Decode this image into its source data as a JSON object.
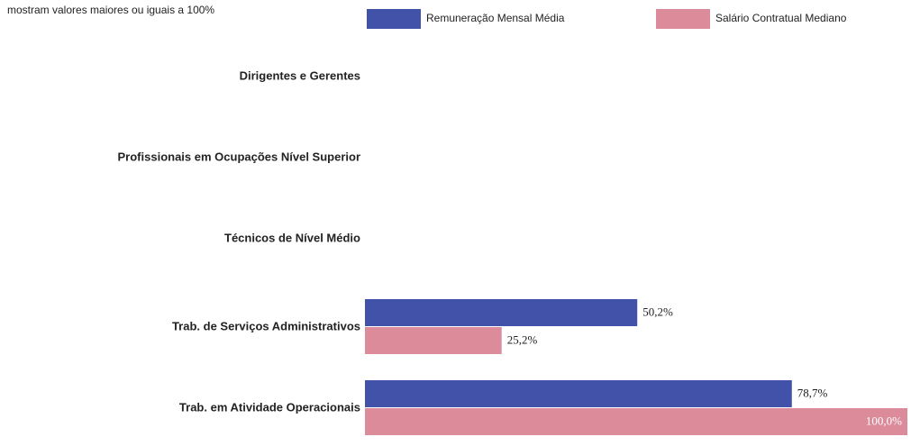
{
  "chart_data": {
    "type": "bar",
    "orientation": "horizontal",
    "subtitle": "mostram valores maiores ou iguais a 100%",
    "categories": [
      "Dirigentes e Gerentes",
      "Profissionais em Ocupações Nível Superior",
      "Técnicos de Nível Médio",
      "Trab. de Serviços Administrativos",
      "Trab. em Atividade Operacionais"
    ],
    "series": [
      {
        "name": "Remuneração Mensal Média",
        "color": "#4152a8",
        "values": [
          null,
          null,
          null,
          50.2,
          78.7
        ],
        "value_labels": [
          null,
          null,
          null,
          "50,2%",
          "78,7%"
        ]
      },
      {
        "name": "Salário Contratual Mediano",
        "color": "#db8b9a",
        "values": [
          null,
          null,
          null,
          25.2,
          100.0
        ],
        "value_labels": [
          null,
          null,
          null,
          "25,2%",
          "100,0%"
        ]
      }
    ],
    "xlim": [
      0,
      100
    ],
    "legend": "top"
  }
}
